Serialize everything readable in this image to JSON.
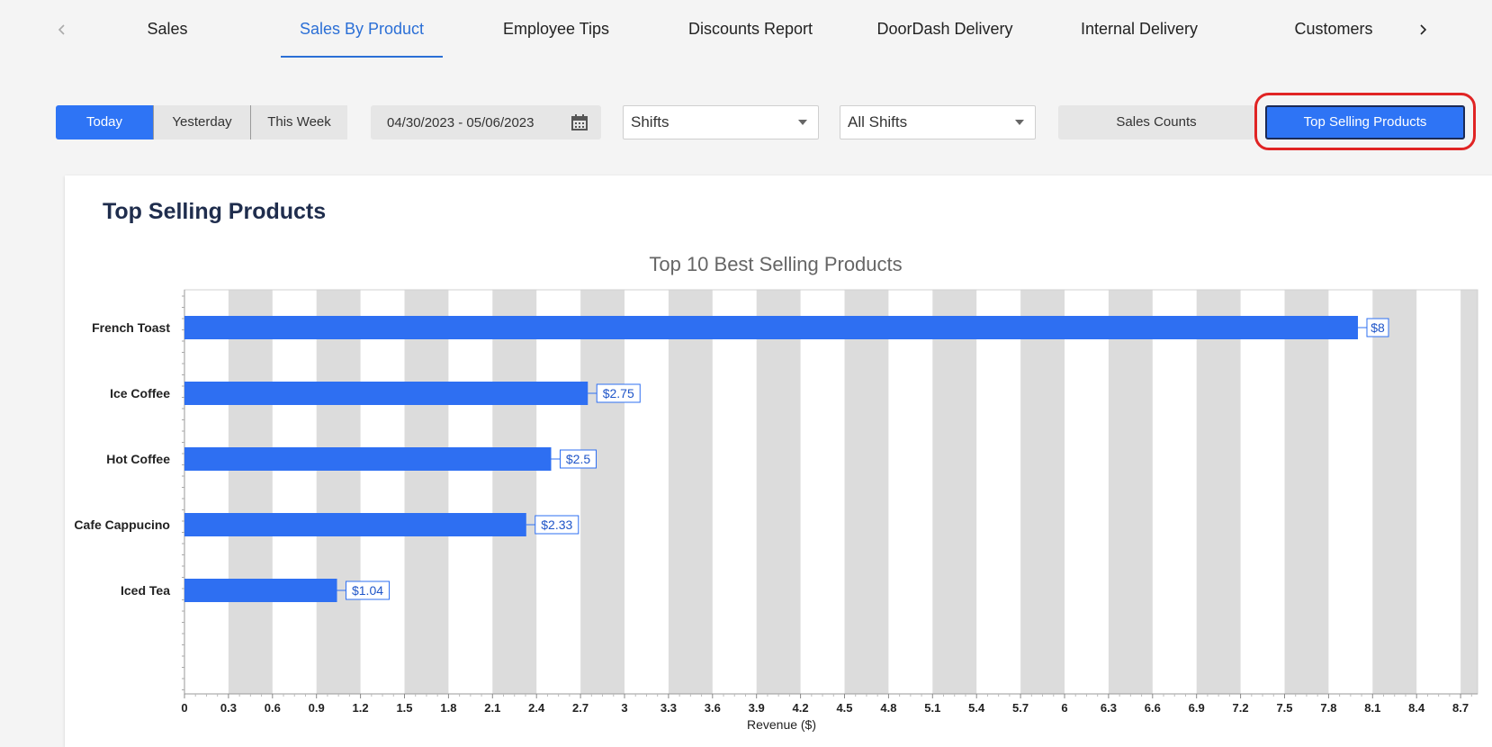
{
  "tabs": {
    "prev_icon": "chevron-left-icon",
    "next_icon": "chevron-right-icon",
    "items": [
      {
        "label": "Sales",
        "active": false
      },
      {
        "label": "Sales By Product",
        "active": true
      },
      {
        "label": "Employee Tips",
        "active": false
      },
      {
        "label": "Discounts Report",
        "active": false
      },
      {
        "label": "DoorDash Delivery",
        "active": false
      },
      {
        "label": "Internal Delivery",
        "active": false
      },
      {
        "label": "Customers",
        "active": false
      }
    ]
  },
  "filters": {
    "period_buttons": [
      {
        "label": "Today",
        "active": true
      },
      {
        "label": "Yesterday",
        "active": false
      },
      {
        "label": "This Week",
        "active": false
      }
    ],
    "date_range": "04/30/2023 - 05/06/2023",
    "date_icon": "calendar-icon",
    "shift_type_select": "Shifts",
    "shift_select": "All Shifts",
    "view_toggle": [
      {
        "label": "Sales Counts",
        "active": false
      },
      {
        "label": "Top Selling Products",
        "active": true
      }
    ]
  },
  "card": {
    "title": "Top Selling Products"
  },
  "colors": {
    "accent": "#2e74f5",
    "bar": "#2e6ff2",
    "highlight": "#e02424",
    "band": "#dcdcdc"
  },
  "chart_data": {
    "type": "bar",
    "orientation": "horizontal",
    "title": "Top 10 Best Selling Products",
    "xlabel": "Revenue ($)",
    "ylabel": "",
    "categories": [
      "French Toast",
      "Ice Coffee",
      "Hot Coffee",
      "Cafe Cappucino",
      "Iced Tea"
    ],
    "values": [
      8,
      2.75,
      2.5,
      2.33,
      1.04
    ],
    "data_labels": [
      "$8",
      "$2.75",
      "$2.5",
      "$2.33",
      "$1.04"
    ],
    "xlim": [
      0,
      8.8
    ],
    "xticks": [
      "0",
      "0.3",
      "0.6",
      "0.9",
      "1.2",
      "1.5",
      "1.8",
      "2.1",
      "2.4",
      "2.7",
      "3",
      "3.3",
      "3.6",
      "3.9",
      "4.2",
      "4.5",
      "4.8",
      "5.1",
      "5.4",
      "5.7",
      "6",
      "6.3",
      "6.6",
      "6.9",
      "7.2",
      "7.5",
      "7.8",
      "8.1",
      "8.4",
      "8.7"
    ],
    "alternating_bands": true,
    "legend": "none"
  }
}
